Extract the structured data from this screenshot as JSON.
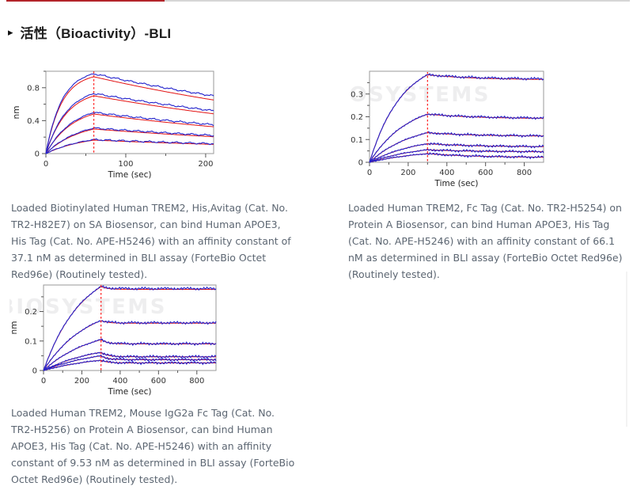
{
  "header": {
    "arrow_icon": "▸",
    "title": "活性（Bioactivity）-BLI"
  },
  "accent": {
    "tab_underline_red": "#b3242a",
    "divider_gray": "#d6d6d6"
  },
  "figures": [
    {
      "caption": "Loaded Biotinylated Human TREM2, His,Avitag (Cat. No. TR2-H82E7) on SA Biosensor, can bind Human APOE3, His Tag (Cat. No. APE-H5246) with an affinity constant of 37.1 nM as determined in BLI assay (ForteBio Octet Red96e) (Routinely tested)."
    },
    {
      "caption": "Loaded Human TREM2, Fc Tag (Cat. No. TR2-H5254) on Protein A Biosensor, can bind Human APOE3, His Tag (Cat. No. APE-H5246) with an affinity constant of 66.1 nM as determined in BLI assay (ForteBio Octet Red96e) (Routinely tested)."
    },
    {
      "caption": "Loaded Human TREM2, Mouse IgG2a Fc Tag (Cat. No. TR2-H5256) on Protein A Biosensor, can bind Human APOE3, His Tag (Cat. No. APE-H5246) with an affinity constant of 9.53 nM as determined in BLI assay (ForteBio Octet Red96e) (Routinely tested)."
    }
  ],
  "chart_data": [
    {
      "type": "line",
      "title": "",
      "xlabel": "Time (sec)",
      "ylabel": "nm",
      "xlim": [
        0,
        210
      ],
      "ylim": [
        0,
        1.0
      ],
      "x_ticks": [
        0,
        100,
        200
      ],
      "x_minor_ticks": [
        50,
        150
      ],
      "y_ticks": [
        0,
        0.4,
        0.8
      ],
      "y_minor_ticks": [
        0.2,
        0.6,
        1.0
      ],
      "grid": false,
      "legend": "none",
      "association_end_sec": 60,
      "dashed_marker_color": "#ff1a1a",
      "fit_color": "#e31212",
      "data_color": "#2424cd",
      "fit_peak_scale": 0.962,
      "fit_end_scale": 0.93,
      "noise_nm": 0.007,
      "watermark": "",
      "dissociation_model": {
        "style": "power",
        "rate": 0
      },
      "series": [
        {
          "name": "curve-1",
          "peak_nm": 0.97,
          "end_nm": 0.7,
          "k_obs": 0.05
        },
        {
          "name": "curve-2",
          "peak_nm": 0.73,
          "end_nm": 0.52,
          "k_obs": 0.038
        },
        {
          "name": "curve-3",
          "peak_nm": 0.5,
          "end_nm": 0.35,
          "k_obs": 0.03
        },
        {
          "name": "curve-4",
          "peak_nm": 0.31,
          "end_nm": 0.22,
          "k_obs": 0.024
        },
        {
          "name": "curve-5",
          "peak_nm": 0.17,
          "end_nm": 0.12,
          "k_obs": 0.02
        }
      ]
    },
    {
      "type": "line",
      "title": "",
      "xlabel": "Time (sec)",
      "ylabel": "nm",
      "xlim": [
        0,
        900
      ],
      "ylim": [
        0,
        0.4
      ],
      "x_ticks": [
        0,
        200,
        400,
        600,
        800
      ],
      "x_minor_ticks": [
        100,
        300,
        500,
        700
      ],
      "y_ticks": [
        0,
        0.1,
        0.2,
        0.3
      ],
      "y_minor_ticks": [
        0.05,
        0.15,
        0.25,
        0.35
      ],
      "grid": false,
      "legend": "none",
      "association_end_sec": 300,
      "dashed_marker_color": "#ff1a1a",
      "fit_color": "#e31212",
      "data_color": "#2424cd",
      "fit_peak_scale": 0.998,
      "fit_end_scale": 0.992,
      "noise_nm": 0.0035,
      "watermark": "BIOSYSTEMS",
      "dissociation_model": {
        "style": "exp",
        "rate": 0.004
      },
      "series": [
        {
          "name": "curve-1",
          "peak_nm": 0.385,
          "end_nm": 0.365,
          "k_obs": 0.006
        },
        {
          "name": "curve-2",
          "peak_nm": 0.212,
          "end_nm": 0.193,
          "k_obs": 0.005
        },
        {
          "name": "curve-3",
          "peak_nm": 0.13,
          "end_nm": 0.115,
          "k_obs": 0.0045
        },
        {
          "name": "curve-4",
          "peak_nm": 0.082,
          "end_nm": 0.068,
          "k_obs": 0.004
        },
        {
          "name": "curve-5",
          "peak_nm": 0.055,
          "end_nm": 0.046,
          "k_obs": 0.0038
        },
        {
          "name": "curve-6",
          "peak_nm": 0.038,
          "end_nm": 0.021,
          "k_obs": 0.0035
        }
      ]
    },
    {
      "type": "line",
      "title": "",
      "xlabel": "Time (sec)",
      "ylabel": "nm",
      "xlim": [
        0,
        900
      ],
      "ylim": [
        0,
        0.29
      ],
      "x_ticks": [
        0,
        200,
        400,
        600,
        800
      ],
      "x_minor_ticks": [
        100,
        300,
        500,
        700
      ],
      "y_ticks": [
        0,
        0.1,
        0.2
      ],
      "y_minor_ticks": [
        0.05,
        0.15,
        0.25
      ],
      "grid": false,
      "legend": "none",
      "association_end_sec": 300,
      "dashed_marker_color": "#ff1a1a",
      "fit_color": "#e31212",
      "data_color": "#2424cd",
      "fit_peak_scale": 0.997,
      "fit_end_scale": 0.99,
      "noise_nm": 0.0028,
      "watermark": "BIOSYSTEMS",
      "dissociation_model": {
        "style": "exp",
        "rate": 0.03
      },
      "series": [
        {
          "name": "curve-1",
          "peak_nm": 0.285,
          "end_nm": 0.278,
          "k_obs": 0.005
        },
        {
          "name": "curve-2",
          "peak_nm": 0.17,
          "end_nm": 0.162,
          "k_obs": 0.0045
        },
        {
          "name": "curve-3",
          "peak_nm": 0.105,
          "end_nm": 0.091,
          "k_obs": 0.004
        },
        {
          "name": "curve-4",
          "peak_nm": 0.062,
          "end_nm": 0.047,
          "k_obs": 0.0036
        },
        {
          "name": "curve-5",
          "peak_nm": 0.05,
          "end_nm": 0.037,
          "k_obs": 0.0034
        },
        {
          "name": "curve-6",
          "peak_nm": 0.035,
          "end_nm": 0.026,
          "k_obs": 0.0032
        }
      ]
    }
  ]
}
